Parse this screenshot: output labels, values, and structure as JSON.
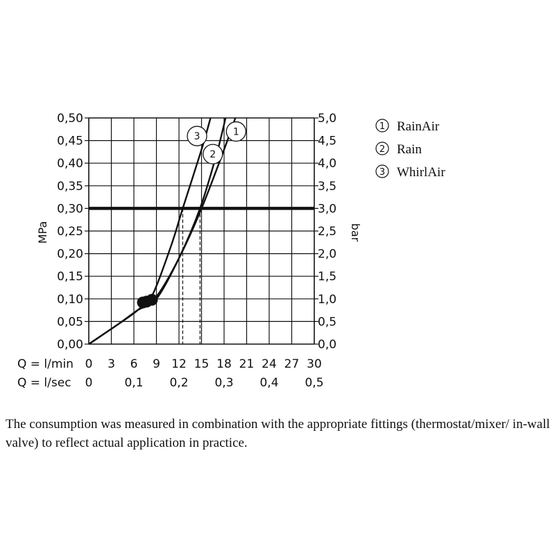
{
  "chart_data": {
    "type": "line",
    "y_left_label": "MPa",
    "y_right_label": "bar",
    "x_rows": [
      {
        "label": "Q = l/min",
        "ticks": [
          "0",
          "3",
          "6",
          "9",
          "12",
          "15",
          "18",
          "21",
          "24",
          "27",
          "30"
        ],
        "values": [
          0,
          3,
          6,
          9,
          12,
          15,
          18,
          21,
          24,
          27,
          30
        ]
      },
      {
        "label": "Q = l/sec",
        "ticks": [
          "0",
          "0,1",
          "0,2",
          "0,3",
          "0,4",
          "0,5"
        ],
        "values": [
          0,
          6,
          12,
          18,
          24,
          30
        ]
      }
    ],
    "xlim": [
      0,
      30
    ],
    "ylim": [
      0,
      0.5
    ],
    "y_left_ticks": [
      "0,00",
      "0,05",
      "0,10",
      "0,15",
      "0,20",
      "0,25",
      "0,30",
      "0,35",
      "0,40",
      "0,45",
      "0,50"
    ],
    "y_right_ticks": [
      "0,0",
      "0,5",
      "1,0",
      "1,5",
      "2,0",
      "2,5",
      "3,0",
      "3,5",
      "4,0",
      "4,5",
      "5,0"
    ],
    "grid": true,
    "reference_line": {
      "y": 0.3
    },
    "series": [
      {
        "name": "RainAir",
        "number": "1",
        "x": [
          0,
          4,
          6.5,
          9,
          12,
          15,
          18,
          19.5
        ],
        "y": [
          0,
          0.045,
          0.075,
          0.105,
          0.19,
          0.3,
          0.43,
          0.5
        ]
      },
      {
        "name": "Rain",
        "number": "2",
        "x": [
          0,
          4,
          6.5,
          9,
          12,
          14.8,
          17,
          18.2
        ],
        "y": [
          0,
          0.045,
          0.075,
          0.1,
          0.19,
          0.3,
          0.42,
          0.5
        ]
      },
      {
        "name": "WhirlAir",
        "number": "3",
        "x": [
          0,
          4,
          6.5,
          8.5,
          11,
          12.5,
          15,
          16.2
        ],
        "y": [
          0,
          0.045,
          0.075,
          0.11,
          0.22,
          0.3,
          0.43,
          0.5
        ]
      }
    ],
    "operating_points": [
      {
        "x": 7.2,
        "y": 0.092
      },
      {
        "x": 8.4,
        "y": 0.098
      },
      {
        "x": 7.7,
        "y": 0.094
      }
    ],
    "dashed_drops": [
      {
        "x": 12.5,
        "y": 0.3
      },
      {
        "x": 14.8,
        "y": 0.3
      }
    ],
    "labels_on_curves": [
      {
        "number": "3",
        "x": 14.4,
        "y": 0.46
      },
      {
        "number": "2",
        "x": 16.5,
        "y": 0.42
      },
      {
        "number": "1",
        "x": 19.6,
        "y": 0.47
      }
    ]
  },
  "legend": [
    {
      "number": "1",
      "name": "RainAir"
    },
    {
      "number": "2",
      "name": "Rain"
    },
    {
      "number": "3",
      "name": "WhirlAir"
    }
  ],
  "caption": "The consumption was measured in combination with the appropriate fittings (thermostat/mixer/ in-wall valve) to reflect actual application in practice."
}
